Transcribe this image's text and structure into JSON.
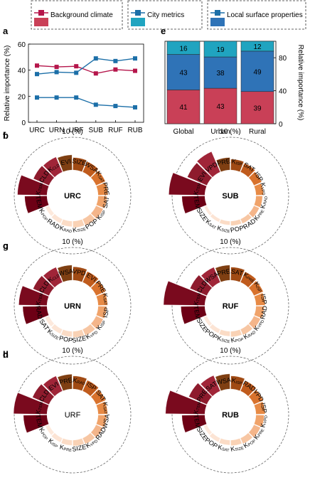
{
  "legend": [
    {
      "label": "Background climate",
      "color": "#c94057"
    },
    {
      "label": "City metrics",
      "color": "#20a4c0"
    },
    {
      "label": "Local surface properties",
      "color": "#2f73b7"
    }
  ],
  "chart_data": [
    {
      "panel": "a",
      "type": "line",
      "x": [
        "URC",
        "URN",
        "URF",
        "SUB",
        "RUF",
        "RUB"
      ],
      "ylabel": "Relative importance (%)",
      "ylim": [
        0,
        60
      ],
      "yticks": [
        0,
        20,
        40,
        60
      ],
      "series": [
        {
          "name": "Background climate",
          "color": "#b5164b",
          "values": [
            43.5,
            42.5,
            43,
            37.5,
            40.5,
            39.5
          ]
        },
        {
          "name": "City metrics",
          "color": "#1c6fa8",
          "values": [
            19,
            19,
            19,
            13.5,
            12.5,
            11.5
          ]
        },
        {
          "name": "Local surface properties",
          "color": "#1c6fa8",
          "values": [
            37,
            38.5,
            38,
            49,
            47,
            49
          ]
        }
      ]
    },
    {
      "panel": "e",
      "type": "bar",
      "stacked": true,
      "categories": [
        "Global",
        "Urban",
        "Rural"
      ],
      "ylabel": "Relative importance (%)",
      "ylim": [
        0,
        100
      ],
      "yticks": [
        0,
        40,
        80
      ],
      "series": [
        {
          "name": "Background climate",
          "color": "#c94057",
          "values": [
            41,
            43,
            39
          ]
        },
        {
          "name": "Local surface properties",
          "color": "#2f73b7",
          "values": [
            43,
            38,
            49
          ]
        },
        {
          "name": "City metrics",
          "color": "#20a4c0",
          "values": [
            16,
            19,
            12
          ]
        }
      ]
    },
    {
      "panel": "b",
      "type": "bar",
      "polar": true,
      "center_label": "URC",
      "center_bold": true,
      "scale_label": "10 (%)",
      "rmax": 10,
      "labels": [
        "KTEM",
        "CLD",
        "KCLD",
        "EVI",
        "SIZE",
        "WSA",
        "KSAT",
        "PRE",
        "SAT",
        "KISP",
        "POP",
        "KSIZE",
        "KRAD",
        "RAD",
        "KPOP",
        "TEM"
      ],
      "values": [
        9.0,
        5.2,
        5.0,
        4.6,
        3.8,
        3.5,
        3.1,
        3.0,
        2.7,
        2.4,
        2.2,
        2.0,
        1.7,
        1.4,
        1.2,
        6.8
      ]
    },
    {
      "panel": "f",
      "type": "bar",
      "polar": true,
      "center_label": "SUB",
      "center_bold": true,
      "scale_label": "10 (%)",
      "rmax": 10,
      "labels": [
        "KTEM",
        "EVI",
        "VPD",
        "PRE",
        "KISP",
        "SAT",
        "ISP",
        "KVPD",
        "KRAD",
        "KPRE",
        "RAD",
        "POP",
        "KSIZE",
        "KSAT",
        "SIZE",
        "TEM"
      ],
      "values": [
        11.0,
        6.5,
        6.8,
        3.8,
        3.3,
        3.0,
        2.6,
        2.3,
        2.0,
        1.8,
        1.5,
        1.4,
        1.2,
        1.0,
        0.9,
        7.0
      ]
    },
    {
      "panel": "c",
      "type": "bar",
      "polar": true,
      "center_label": "URN",
      "center_bold": true,
      "scale_label": "10 (%)",
      "rmax": 10,
      "labels": [
        "KTEM",
        "CLD",
        "KCLD",
        "WSA",
        "VPD",
        "EVI",
        "PRE",
        "KSAT",
        "ISP",
        "KISP",
        "KVPD",
        "SIZE",
        "POP",
        "KSIZE",
        "SAT",
        "RAD"
      ],
      "values": [
        8.6,
        5.3,
        5.0,
        4.6,
        4.1,
        3.6,
        3.2,
        2.9,
        2.6,
        2.4,
        2.1,
        1.9,
        1.7,
        1.5,
        1.3,
        7.4
      ]
    },
    {
      "panel": "g",
      "type": "bar",
      "polar": true,
      "center_label": "RUF",
      "center_bold": true,
      "scale_label": "10 (%)",
      "rmax": 10,
      "labels": [
        "KTEM",
        "CLD",
        "WSA",
        "PRE",
        "SAT",
        "KPRE",
        "KISP",
        "ISP",
        "RAD",
        "KVPD",
        "KRAD",
        "KPOP",
        "KSIZE",
        "POP",
        "SIZE",
        "TEM"
      ],
      "values": [
        12.6,
        5.6,
        5.0,
        4.6,
        4.0,
        3.5,
        3.1,
        2.8,
        2.5,
        2.2,
        1.9,
        1.7,
        1.5,
        1.3,
        1.1,
        7.3
      ]
    },
    {
      "panel": "d",
      "type": "bar",
      "polar": true,
      "center_label": "URF",
      "center_bold": false,
      "scale_label": "10 (%)",
      "rmax": 10,
      "labels": [
        "KTEM",
        "CLD",
        "EVI",
        "PRE",
        "KRAD",
        "ISP",
        "SAT",
        "KSAT",
        "WSA",
        "RAD",
        "KVPD",
        "SIZE",
        "KPRE",
        "KISP",
        "KPOP",
        "TEM"
      ],
      "values": [
        10.2,
        5.5,
        5.0,
        4.5,
        4.0,
        3.6,
        3.2,
        2.9,
        2.6,
        2.3,
        2.0,
        1.8,
        1.6,
        1.4,
        1.2,
        7.2
      ]
    },
    {
      "panel": "h",
      "type": "bar",
      "polar": true,
      "center_label": "RUB",
      "center_bold": true,
      "scale_label": "10 (%)",
      "rmax": 10,
      "labels": [
        "KTEM",
        "PRE",
        "SAT",
        "WSA",
        "KISP",
        "RAD",
        "VPD",
        "ISP",
        "KVPD",
        "KPRE",
        "KPOP",
        "KSIZE",
        "KSAT",
        "POP",
        "SIZE",
        "TEM"
      ],
      "values": [
        12.0,
        6.0,
        5.2,
        4.6,
        4.0,
        3.5,
        3.1,
        2.8,
        2.5,
        2.2,
        1.9,
        1.7,
        1.5,
        1.3,
        1.1,
        7.0
      ]
    }
  ]
}
